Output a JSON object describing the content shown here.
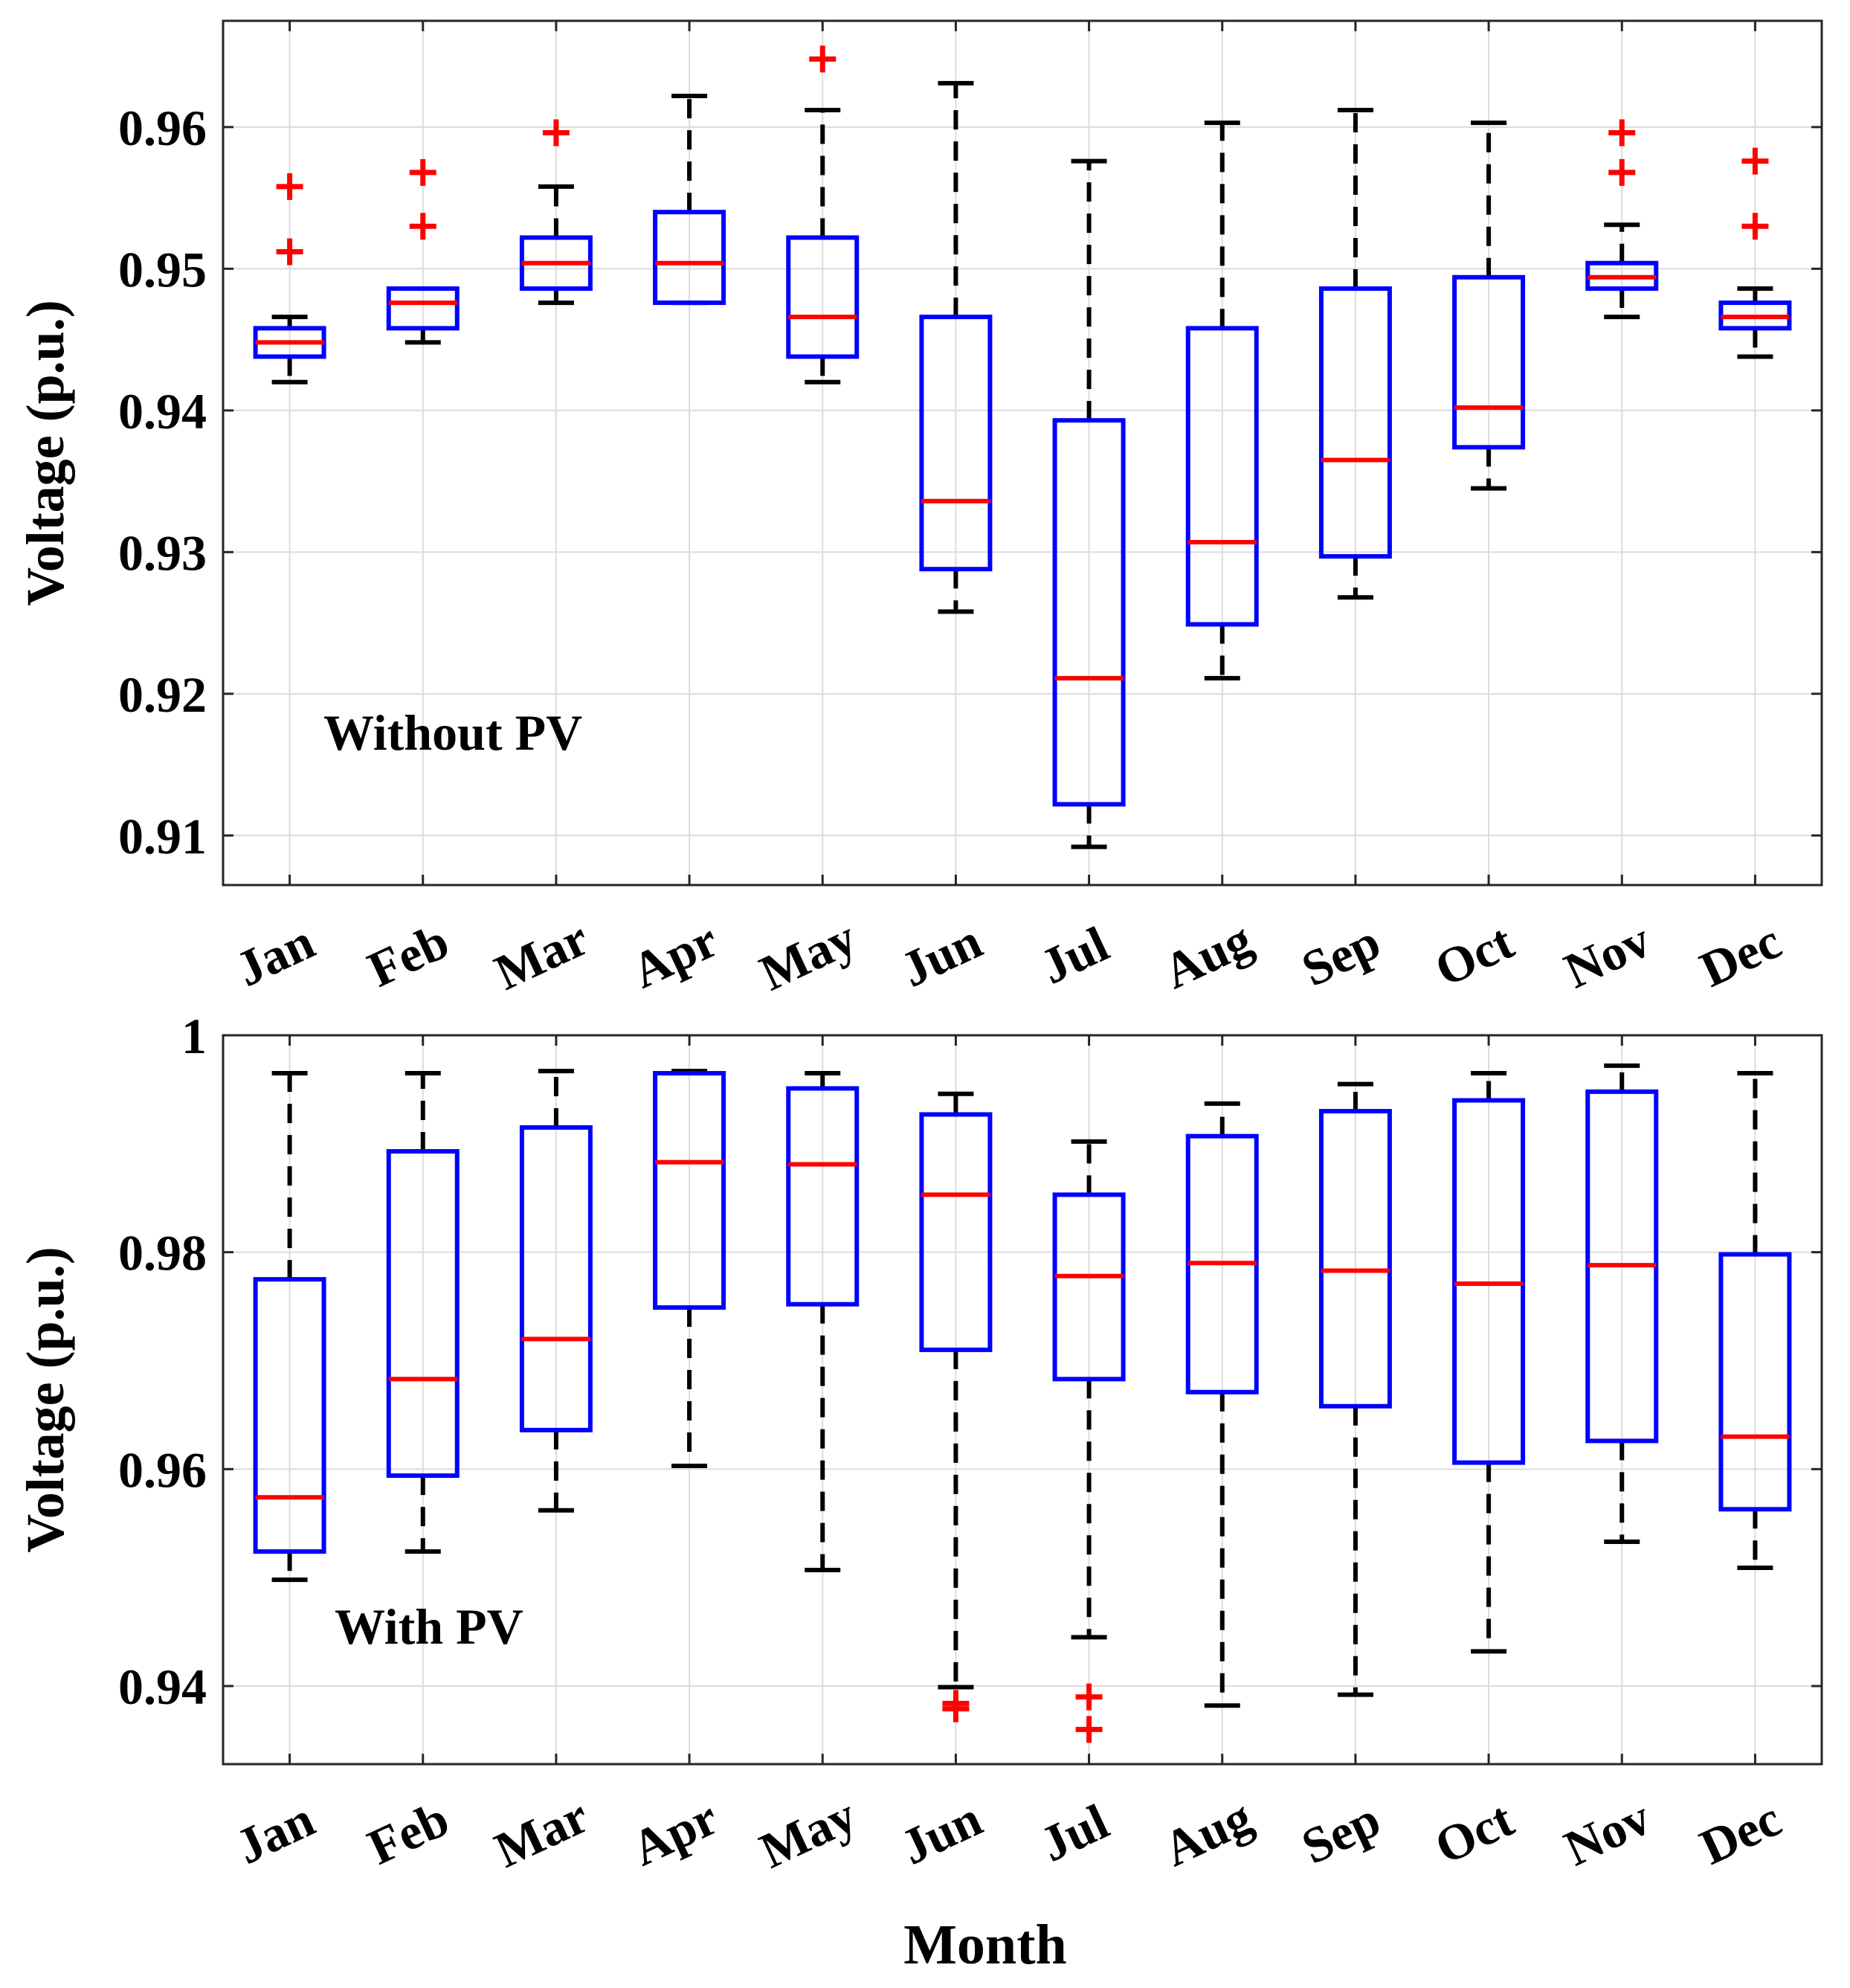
{
  "colors": {
    "box": "#0000ff",
    "median": "#ff0000",
    "whisker": "#000000",
    "outlier": "#ff0000",
    "grid": "#dcdcdc",
    "axis": "#262626"
  },
  "chart_data": [
    {
      "type": "boxplot",
      "annotation": "Without PV",
      "xlabel": "",
      "ylabel": "Voltage (p.u.)",
      "categories": [
        "Jan",
        "Feb",
        "Mar",
        "Apr",
        "May",
        "Jun",
        "Jul",
        "Aug",
        "Sep",
        "Oct",
        "Nov",
        "Dec"
      ],
      "ylim": [
        0.9065,
        0.9675
      ],
      "yticks": [
        0.91,
        0.92,
        0.93,
        0.94,
        0.95,
        0.96
      ],
      "ytick_labels": [
        "0.91",
        "0.92",
        "0.93",
        "0.94",
        "0.95",
        "0.96"
      ],
      "grid": true,
      "boxes": [
        {
          "month": "Jan",
          "whisker_low": 0.942,
          "q1": 0.9438,
          "median": 0.9448,
          "q3": 0.9458,
          "whisker_high": 0.9466,
          "outliers": [
            0.9512,
            0.9558
          ]
        },
        {
          "month": "Feb",
          "whisker_low": 0.9448,
          "q1": 0.9458,
          "median": 0.9476,
          "q3": 0.9486,
          "whisker_high": 0.9486,
          "outliers": [
            0.953,
            0.9568
          ]
        },
        {
          "month": "Mar",
          "whisker_low": 0.9476,
          "q1": 0.9486,
          "median": 0.9504,
          "q3": 0.9522,
          "whisker_high": 0.9558,
          "outliers": [
            0.9596
          ]
        },
        {
          "month": "Apr",
          "whisker_low": 0.9476,
          "q1": 0.9476,
          "median": 0.9504,
          "q3": 0.954,
          "whisker_high": 0.9622,
          "outliers": []
        },
        {
          "month": "May",
          "whisker_low": 0.942,
          "q1": 0.9438,
          "median": 0.9466,
          "q3": 0.9522,
          "whisker_high": 0.9612,
          "outliers": [
            0.9648
          ]
        },
        {
          "month": "Jun",
          "whisker_low": 0.9258,
          "q1": 0.9288,
          "median": 0.9336,
          "q3": 0.9466,
          "whisker_high": 0.9631,
          "outliers": []
        },
        {
          "month": "Jul",
          "whisker_low": 0.9092,
          "q1": 0.9122,
          "median": 0.9211,
          "q3": 0.9393,
          "whisker_high": 0.9576,
          "outliers": []
        },
        {
          "month": "Aug",
          "whisker_low": 0.9211,
          "q1": 0.9249,
          "median": 0.9307,
          "q3": 0.9458,
          "whisker_high": 0.9603,
          "outliers": []
        },
        {
          "month": "Sep",
          "whisker_low": 0.9268,
          "q1": 0.9297,
          "median": 0.9365,
          "q3": 0.9486,
          "whisker_high": 0.9612,
          "outliers": []
        },
        {
          "month": "Oct",
          "whisker_low": 0.9345,
          "q1": 0.9374,
          "median": 0.9402,
          "q3": 0.9494,
          "whisker_high": 0.9603,
          "outliers": []
        },
        {
          "month": "Nov",
          "whisker_low": 0.9466,
          "q1": 0.9486,
          "median": 0.9494,
          "q3": 0.9504,
          "whisker_high": 0.9531,
          "outliers": [
            0.9568,
            0.9596
          ]
        },
        {
          "month": "Dec",
          "whisker_low": 0.9438,
          "q1": 0.9458,
          "median": 0.9466,
          "q3": 0.9476,
          "whisker_high": 0.9486,
          "outliers": [
            0.953,
            0.9576
          ]
        }
      ]
    },
    {
      "type": "boxplot",
      "annotation": "With PV",
      "xlabel": "Month",
      "ylabel": "Voltage (p.u.)",
      "categories": [
        "Jan",
        "Feb",
        "Mar",
        "Apr",
        "May",
        "Jun",
        "Jul",
        "Aug",
        "Sep",
        "Oct",
        "Nov",
        "Dec"
      ],
      "ylim": [
        0.9328,
        1.0
      ],
      "yticks": [
        0.94,
        0.96,
        0.98,
        1.0
      ],
      "ytick_labels": [
        "0.94",
        "0.96",
        "0.98",
        "1"
      ],
      "grid": true,
      "boxes": [
        {
          "month": "Jan",
          "whisker_low": 0.9498,
          "q1": 0.9524,
          "median": 0.9574,
          "q3": 0.9775,
          "whisker_high": 0.9965,
          "outliers": []
        },
        {
          "month": "Feb",
          "whisker_low": 0.9524,
          "q1": 0.9594,
          "median": 0.9683,
          "q3": 0.9893,
          "whisker_high": 0.9965,
          "outliers": []
        },
        {
          "month": "Mar",
          "whisker_low": 0.9562,
          "q1": 0.9636,
          "median": 0.972,
          "q3": 0.9915,
          "whisker_high": 0.9967,
          "outliers": []
        },
        {
          "month": "Apr",
          "whisker_low": 0.9603,
          "q1": 0.9749,
          "median": 0.9883,
          "q3": 0.9965,
          "whisker_high": 0.9967,
          "outliers": []
        },
        {
          "month": "May",
          "whisker_low": 0.9507,
          "q1": 0.9752,
          "median": 0.9881,
          "q3": 0.9951,
          "whisker_high": 0.9965,
          "outliers": []
        },
        {
          "month": "Jun",
          "whisker_low": 0.9399,
          "q1": 0.971,
          "median": 0.9853,
          "q3": 0.9927,
          "whisker_high": 0.9946,
          "outliers": [
            0.9384,
            0.9379
          ]
        },
        {
          "month": "Jul",
          "whisker_low": 0.9445,
          "q1": 0.9683,
          "median": 0.9778,
          "q3": 0.9853,
          "whisker_high": 0.9902,
          "outliers": [
            0.939,
            0.936
          ]
        },
        {
          "month": "Aug",
          "whisker_low": 0.9382,
          "q1": 0.9671,
          "median": 0.979,
          "q3": 0.9907,
          "whisker_high": 0.9937,
          "outliers": []
        },
        {
          "month": "Sep",
          "whisker_low": 0.9392,
          "q1": 0.9658,
          "median": 0.9783,
          "q3": 0.993,
          "whisker_high": 0.9955,
          "outliers": []
        },
        {
          "month": "Oct",
          "whisker_low": 0.9432,
          "q1": 0.9606,
          "median": 0.9771,
          "q3": 0.994,
          "whisker_high": 0.9965,
          "outliers": []
        },
        {
          "month": "Nov",
          "whisker_low": 0.9533,
          "q1": 0.9626,
          "median": 0.9788,
          "q3": 0.9948,
          "whisker_high": 0.9972,
          "outliers": []
        },
        {
          "month": "Dec",
          "whisker_low": 0.9509,
          "q1": 0.9563,
          "median": 0.963,
          "q3": 0.9798,
          "whisker_high": 0.9965,
          "outliers": []
        }
      ]
    }
  ]
}
